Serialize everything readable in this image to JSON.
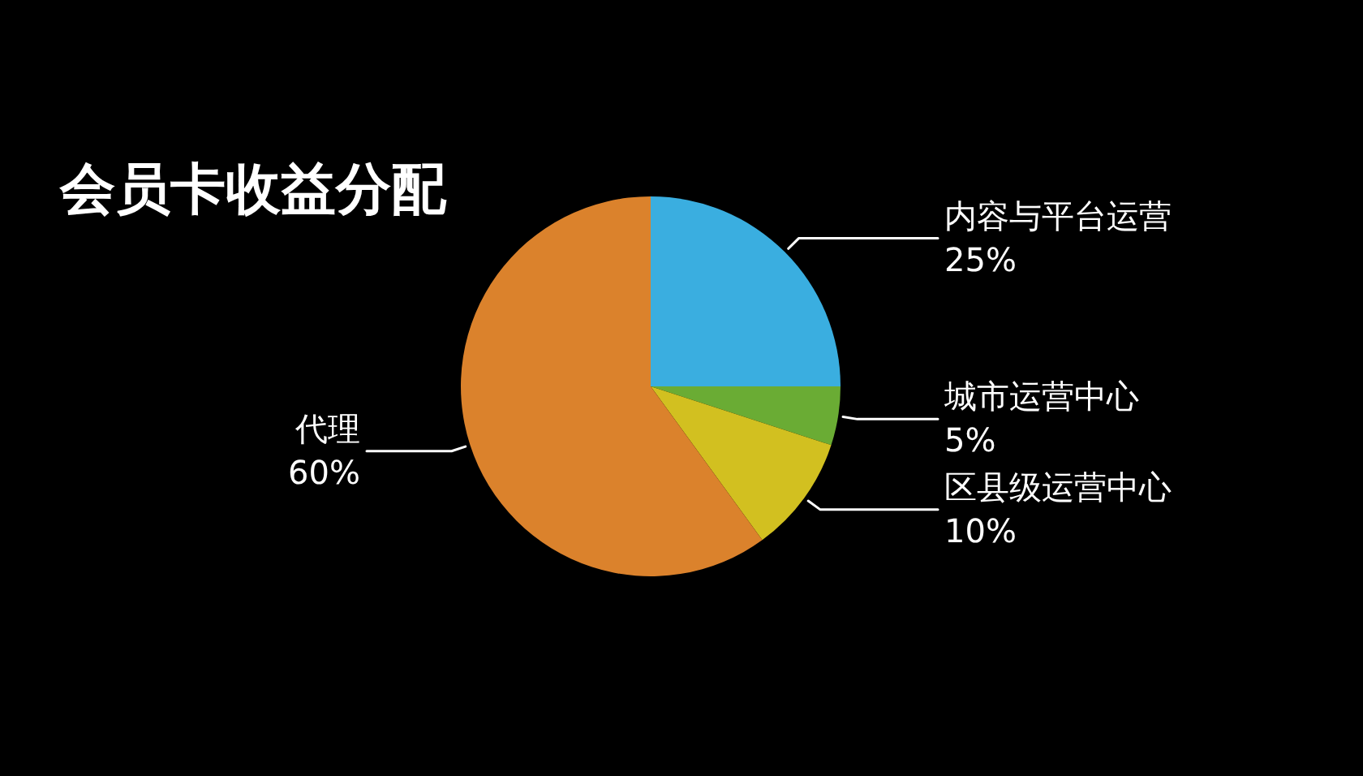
{
  "chart_data": {
    "type": "pie",
    "title": "会员卡收益分配",
    "categories": [
      "内容与平台运营",
      "城市运营中心",
      "区县级运营中心",
      "代理"
    ],
    "values": [
      25,
      5,
      10,
      60
    ],
    "value_labels": [
      "25%",
      "5%",
      "10%",
      "60%"
    ],
    "colors": [
      "#3aaee0",
      "#6aac34",
      "#d2c020",
      "#db822c"
    ]
  }
}
